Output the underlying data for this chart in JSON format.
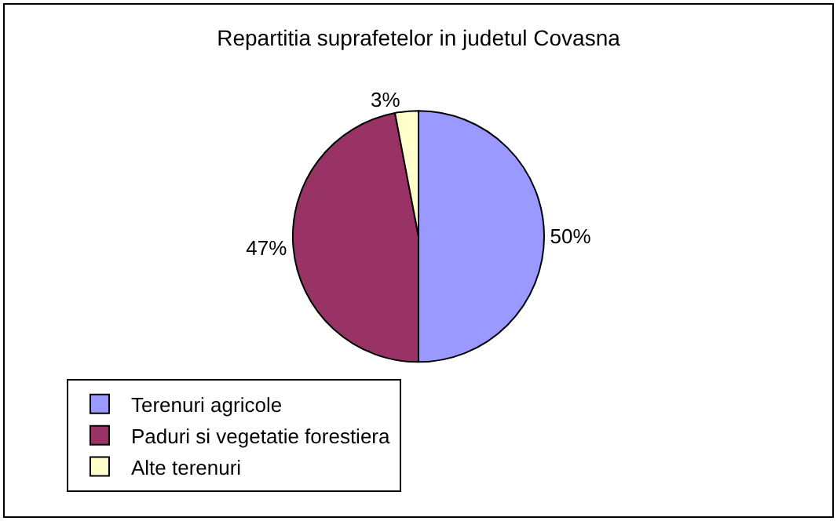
{
  "chart_data": {
    "type": "pie",
    "title": "Repartitia suprafetelor in judetul Covasna",
    "categories": [
      "Terenuri agricole",
      "Paduri si vegetatie forestiera",
      "Alte terenuri"
    ],
    "values": [
      50,
      47,
      3
    ],
    "value_labels": [
      "50%",
      "47%",
      "3%"
    ],
    "colors": [
      "#9999ff",
      "#993366",
      "#ffffcc"
    ],
    "legend": "bottom"
  }
}
